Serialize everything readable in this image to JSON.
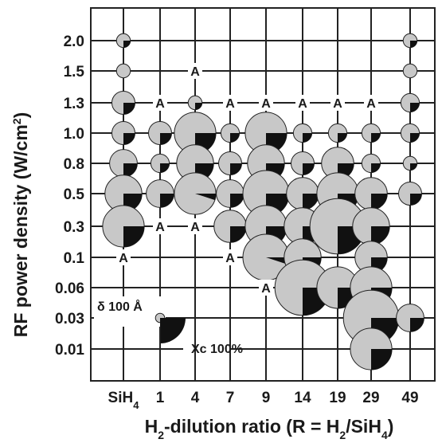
{
  "chart_data": {
    "type": "scatter",
    "xlabel": {
      "main": "H",
      "sub1": "2",
      "mid": "-dilution ratio (R = H",
      "sub2": "2",
      "mid2": "/SiH",
      "sub3": "4",
      "end": ")"
    },
    "ylabel": {
      "main": "RF power density (W/cm",
      "sup": "2",
      "end": ")"
    },
    "x_ticks": [
      {
        "label": "SiH",
        "sub": "4"
      },
      {
        "label": "1"
      },
      {
        "label": "4"
      },
      {
        "label": "7"
      },
      {
        "label": "9"
      },
      {
        "label": "14"
      },
      {
        "label": "19"
      },
      {
        "label": "29"
      },
      {
        "label": "49"
      }
    ],
    "y_ticks": [
      "2.0",
      "1.5",
      "1.3",
      "1.0",
      "0.8",
      "0.5",
      "0.3",
      "0.1",
      "0.06",
      "0.03",
      "0.01"
    ],
    "amorphous_marker": "A",
    "legend": {
      "size_label": "δ 100 Å",
      "crystal_label": "Xc 100%",
      "size_nm": 10,
      "crystallinity_pct": 100
    },
    "colors": {
      "crystalline": "#111111",
      "amorphous_fraction": "#c8c8c8",
      "grid": "#222222"
    },
    "points": [
      {
        "x": "SiH4",
        "y": "2.0",
        "size_nm": 1.5,
        "xc": 25
      },
      {
        "x": "SiH4",
        "y": "1.5",
        "size_nm": 1.5,
        "xc": 0
      },
      {
        "x": "SiH4",
        "y": "1.3",
        "size_nm": 2.5,
        "xc": 25
      },
      {
        "x": "SiH4",
        "y": "1.0",
        "size_nm": 2.5,
        "xc": 25
      },
      {
        "x": "SiH4",
        "y": "0.8",
        "size_nm": 3,
        "xc": 25
      },
      {
        "x": "SiH4",
        "y": "0.5",
        "size_nm": 4,
        "xc": 25
      },
      {
        "x": "SiH4",
        "y": "0.3",
        "size_nm": 4.5,
        "xc": 25
      },
      {
        "x": "SiH4",
        "y": "0.1",
        "amorphous": true
      },
      {
        "x": "1",
        "y": "1.3",
        "amorphous": true
      },
      {
        "x": "1",
        "y": "1.0",
        "size_nm": 2.5,
        "xc": 25
      },
      {
        "x": "1",
        "y": "0.8",
        "size_nm": 2,
        "xc": 25
      },
      {
        "x": "1",
        "y": "0.5",
        "size_nm": 3,
        "xc": 25
      },
      {
        "x": "1",
        "y": "0.3",
        "amorphous": true
      },
      {
        "x": "4",
        "y": "1.5",
        "amorphous": true
      },
      {
        "x": "4",
        "y": "1.3",
        "size_nm": 1.5,
        "xc": 25
      },
      {
        "x": "4",
        "y": "1.0",
        "size_nm": 4.5,
        "xc": 25
      },
      {
        "x": "4",
        "y": "0.8",
        "size_nm": 4,
        "xc": 25
      },
      {
        "x": "4",
        "y": "0.5",
        "size_nm": 4.5,
        "xc": 5
      },
      {
        "x": "4",
        "y": "0.3",
        "amorphous": true
      },
      {
        "x": "7",
        "y": "1.3",
        "amorphous": true
      },
      {
        "x": "7",
        "y": "1.0",
        "size_nm": 2,
        "xc": 25
      },
      {
        "x": "7",
        "y": "0.8",
        "size_nm": 2.5,
        "xc": 25
      },
      {
        "x": "7",
        "y": "0.5",
        "size_nm": 3,
        "xc": 25
      },
      {
        "x": "7",
        "y": "0.3",
        "size_nm": 3.5,
        "xc": 25
      },
      {
        "x": "7",
        "y": "0.1",
        "amorphous": true
      },
      {
        "x": "9",
        "y": "1.3",
        "amorphous": true
      },
      {
        "x": "9",
        "y": "1.0",
        "size_nm": 4.5,
        "xc": 25
      },
      {
        "x": "9",
        "y": "0.8",
        "size_nm": 4,
        "xc": 25
      },
      {
        "x": "9",
        "y": "0.5",
        "size_nm": 5,
        "xc": 25
      },
      {
        "x": "9",
        "y": "0.3",
        "size_nm": 4.5,
        "xc": 25
      },
      {
        "x": "9",
        "y": "0.1",
        "size_nm": 5,
        "xc": 5
      },
      {
        "x": "9",
        "y": "0.06",
        "amorphous": true
      },
      {
        "x": "14",
        "y": "1.3",
        "amorphous": true
      },
      {
        "x": "14",
        "y": "1.0",
        "size_nm": 2,
        "xc": 25
      },
      {
        "x": "14",
        "y": "0.8",
        "size_nm": 2.5,
        "xc": 25
      },
      {
        "x": "14",
        "y": "0.5",
        "size_nm": 3.5,
        "xc": 25
      },
      {
        "x": "14",
        "y": "0.3",
        "size_nm": 4,
        "xc": 25
      },
      {
        "x": "14",
        "y": "0.1",
        "size_nm": 4,
        "xc": 25
      },
      {
        "x": "14",
        "y": "0.06",
        "size_nm": 6,
        "xc": 25
      },
      {
        "x": "19",
        "y": "1.3",
        "amorphous": true
      },
      {
        "x": "19",
        "y": "1.0",
        "size_nm": 2,
        "xc": 25
      },
      {
        "x": "19",
        "y": "0.8",
        "size_nm": 3.5,
        "xc": 25
      },
      {
        "x": "19",
        "y": "0.5",
        "size_nm": 4.5,
        "xc": 25
      },
      {
        "x": "19",
        "y": "0.3",
        "size_nm": 6,
        "xc": 25
      },
      {
        "x": "19",
        "y": "0.06",
        "size_nm": 4.5,
        "xc": 25
      },
      {
        "x": "29",
        "y": "1.3",
        "amorphous": true
      },
      {
        "x": "29",
        "y": "1.0",
        "size_nm": 2,
        "xc": 25
      },
      {
        "x": "29",
        "y": "0.8",
        "size_nm": 2,
        "xc": 25
      },
      {
        "x": "29",
        "y": "0.5",
        "size_nm": 3.5,
        "xc": 25
      },
      {
        "x": "29",
        "y": "0.3",
        "size_nm": 4,
        "xc": 25
      },
      {
        "x": "29",
        "y": "0.1",
        "size_nm": 3.5,
        "xc": 25
      },
      {
        "x": "29",
        "y": "0.06",
        "size_nm": 4.5,
        "xc": 25
      },
      {
        "x": "29",
        "y": "0.03",
        "size_nm": 6,
        "xc": 25
      },
      {
        "x": "29",
        "y": "0.01",
        "size_nm": 4.5,
        "xc": 25
      },
      {
        "x": "49",
        "y": "2.0",
        "size_nm": 1.5,
        "xc": 25
      },
      {
        "x": "49",
        "y": "1.5",
        "size_nm": 1.5,
        "xc": 0
      },
      {
        "x": "49",
        "y": "1.3",
        "size_nm": 2,
        "xc": 25
      },
      {
        "x": "49",
        "y": "1.0",
        "size_nm": 2,
        "xc": 25
      },
      {
        "x": "49",
        "y": "0.8",
        "size_nm": 1.5,
        "xc": 25
      },
      {
        "x": "49",
        "y": "0.5",
        "size_nm": 2.5,
        "xc": 25
      },
      {
        "x": "49",
        "y": "0.03",
        "size_nm": 3,
        "xc": 25
      }
    ]
  }
}
